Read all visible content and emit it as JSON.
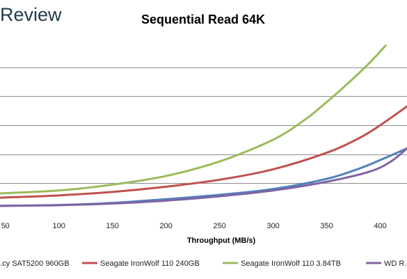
{
  "brand": {
    "text": "Review"
  },
  "chart_data": {
    "type": "line",
    "title": "Sequential Read 64K",
    "xlabel": "Throughput (MB/s)",
    "ylabel": "",
    "xlim": [
      45,
      425
    ],
    "ylim": [
      0,
      6
    ],
    "x_ticks": [
      50,
      100,
      150,
      200,
      250,
      300,
      350,
      400
    ],
    "y_gridlines": [
      1,
      2,
      3,
      4,
      5
    ],
    "grid": "horizontal",
    "legend_position": "bottom",
    "series": [
      {
        "name": "...cy SAT5200 960GB",
        "color": "#4f81bd",
        "x": [
          45,
          100,
          150,
          200,
          250,
          300,
          350,
          380,
          400,
          425
        ],
        "y": [
          0.22,
          0.25,
          0.32,
          0.45,
          0.6,
          0.8,
          1.15,
          1.5,
          1.8,
          2.2
        ]
      },
      {
        "name": "Seagate IronWolf 110 240GB",
        "color": "#c0504d",
        "x": [
          45,
          100,
          150,
          200,
          250,
          300,
          350,
          380,
          400,
          425
        ],
        "y": [
          0.5,
          0.58,
          0.7,
          0.88,
          1.12,
          1.48,
          2.05,
          2.55,
          3.0,
          3.65
        ]
      },
      {
        "name": "Seagate IronWolf 110 3.84TB",
        "color": "#9bbb59",
        "x": [
          45,
          100,
          150,
          200,
          250,
          300,
          330,
          350,
          370,
          390,
          405
        ],
        "y": [
          0.65,
          0.75,
          0.95,
          1.25,
          1.75,
          2.5,
          3.2,
          3.8,
          4.45,
          5.15,
          5.75
        ]
      },
      {
        "name": "WD R...",
        "color": "#8064a2",
        "x": [
          45,
          100,
          150,
          200,
          250,
          300,
          350,
          390,
          410,
          425
        ],
        "y": [
          0.22,
          0.24,
          0.3,
          0.4,
          0.55,
          0.75,
          1.05,
          1.4,
          1.75,
          2.2
        ]
      }
    ]
  }
}
